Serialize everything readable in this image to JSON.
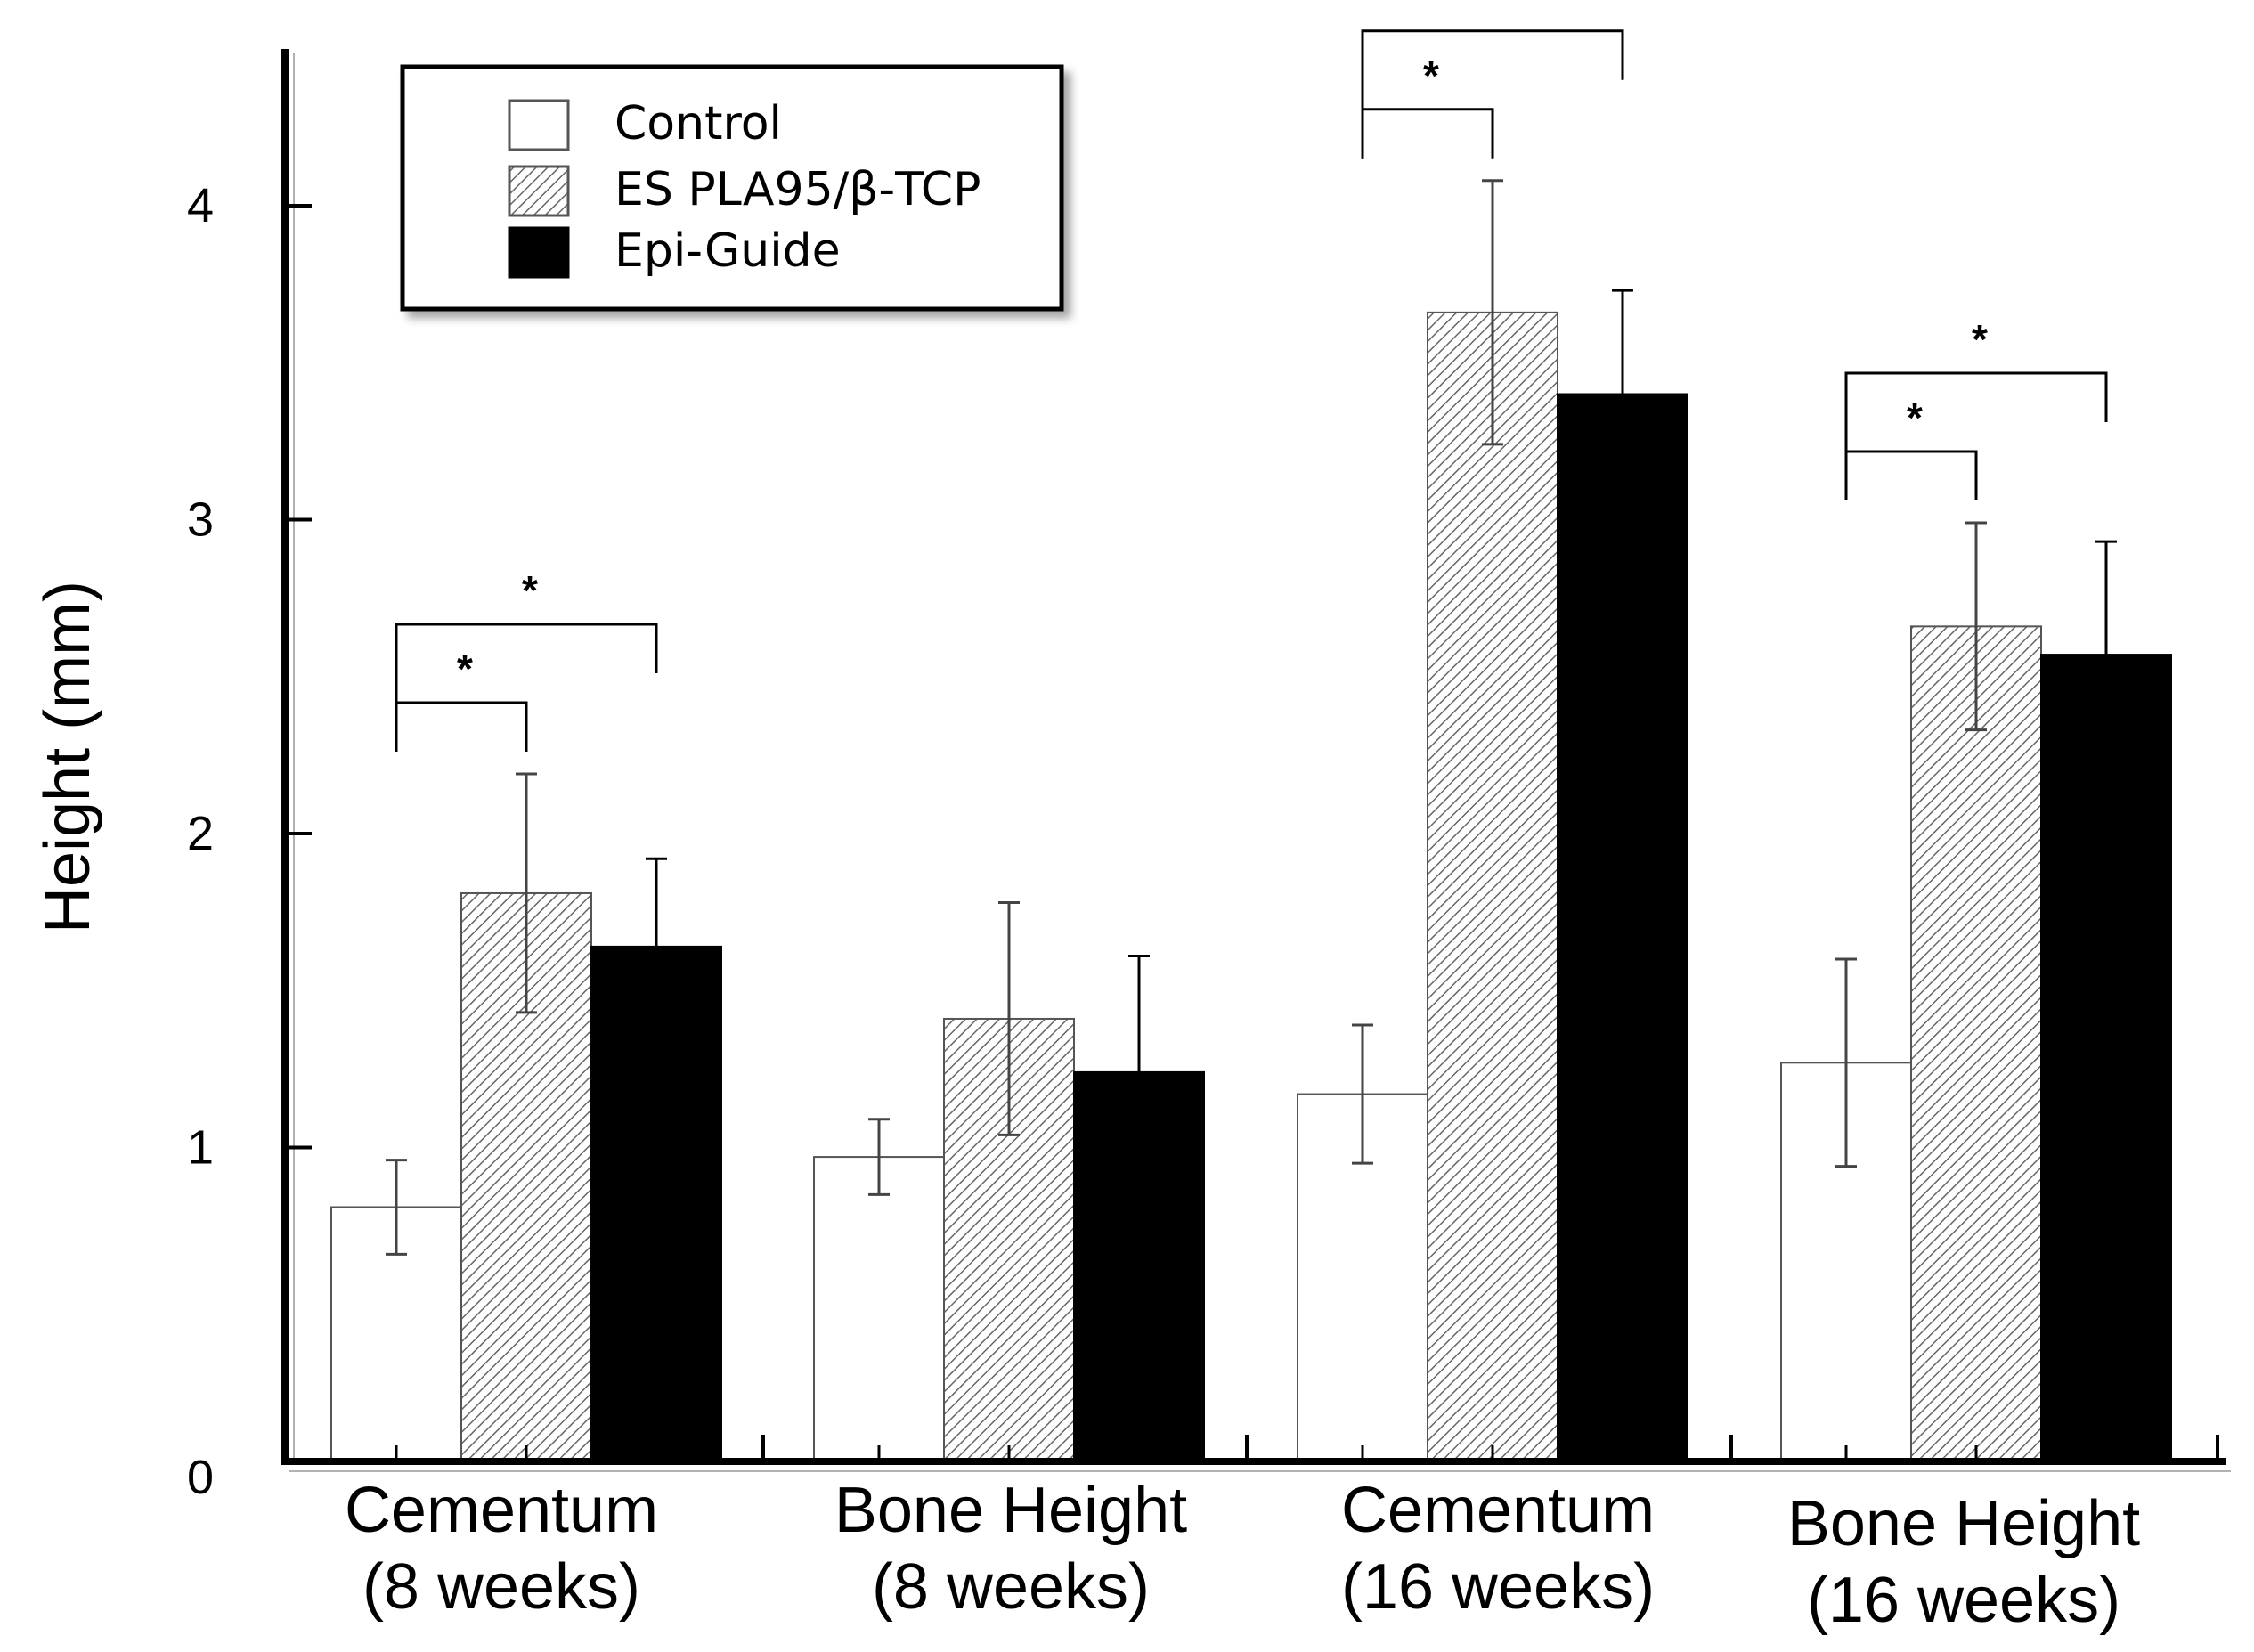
{
  "chart_data": {
    "type": "bar",
    "title": "",
    "xlabel": "",
    "ylabel": "Height (mm)",
    "ylim": [
      0,
      4.5
    ],
    "yticks": [
      0,
      1,
      2,
      3,
      4
    ],
    "grid": false,
    "legend_position": "top-left",
    "categories": [
      [
        "Cementum",
        "(8 weeks)"
      ],
      [
        "Bone Height",
        "(8 weeks)"
      ],
      [
        "Cementum",
        "(16 weeks)"
      ],
      [
        "Bone Height",
        "(16 weeks)"
      ]
    ],
    "series": [
      {
        "name": "Control",
        "fill": "white",
        "values": [
          0.81,
          0.97,
          1.17,
          1.27
        ],
        "errors": [
          0.15,
          0.12,
          0.22,
          0.33
        ]
      },
      {
        "name": "ES PLA95/β-TCP",
        "fill": "hatched",
        "values": [
          1.81,
          1.41,
          3.66,
          2.66
        ],
        "errors": [
          0.38,
          0.37,
          0.42,
          0.33
        ]
      },
      {
        "name": "Epi-Guide",
        "fill": "black",
        "values": [
          1.64,
          1.24,
          3.4,
          2.57
        ],
        "errors": [
          0.28,
          0.37,
          0.33,
          0.36
        ]
      }
    ],
    "significance": [
      {
        "category": 0,
        "from_series": 0,
        "to_series": 1,
        "label": "*"
      },
      {
        "category": 0,
        "from_series": 0,
        "to_series": 2,
        "label": "*"
      },
      {
        "category": 2,
        "from_series": 0,
        "to_series": 1,
        "label": "*"
      },
      {
        "category": 2,
        "from_series": 0,
        "to_series": 2,
        "label": "*"
      },
      {
        "category": 3,
        "from_series": 0,
        "to_series": 1,
        "label": "*"
      },
      {
        "category": 3,
        "from_series": 0,
        "to_series": 2,
        "label": "*"
      }
    ]
  },
  "colors": {
    "axis": "#000000",
    "bar_outline": "#555555",
    "control_fill": "#ffffff",
    "epi_fill": "#000000",
    "hatch_line": "#666666"
  }
}
